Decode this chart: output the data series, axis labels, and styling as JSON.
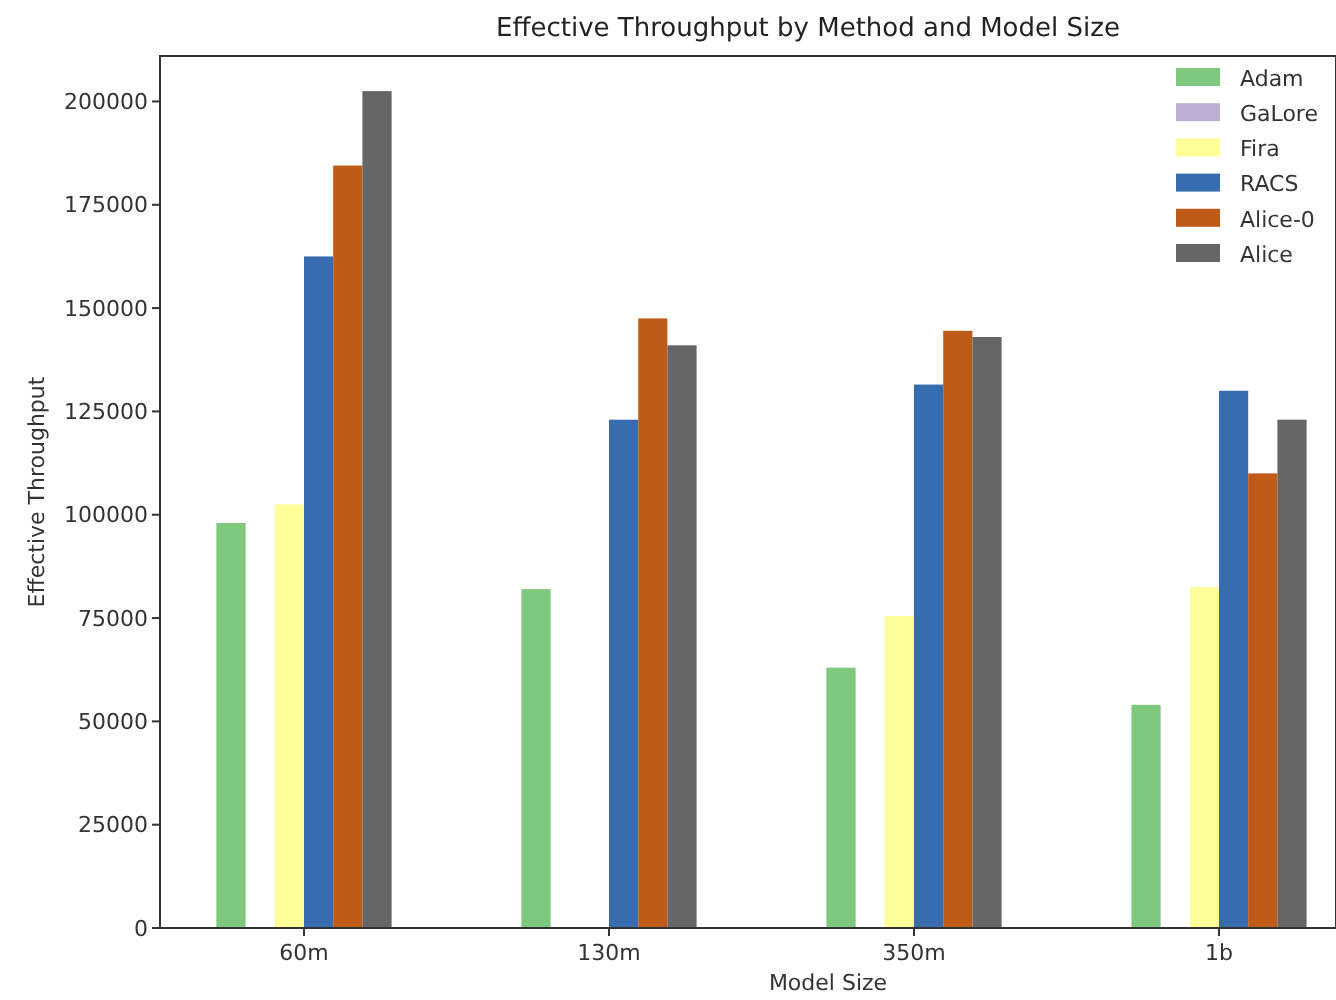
{
  "chart_data": {
    "type": "bar",
    "title": "Effective Throughput by Method and Model Size",
    "xlabel": "Model Size",
    "ylabel": "Effective Throughput",
    "categories": [
      "60m",
      "130m",
      "350m",
      "1b"
    ],
    "series": [
      {
        "name": "Adam",
        "color": "#7fc97f",
        "values": [
          98000,
          82000,
          63000,
          54000
        ]
      },
      {
        "name": "GaLore",
        "color": "#beaed4",
        "values": [
          null,
          null,
          null,
          null
        ]
      },
      {
        "name": "Fira",
        "color": "#ffff99",
        "values": [
          102500,
          null,
          75500,
          82500
        ]
      },
      {
        "name": "RACS",
        "color": "#386cb0",
        "values": [
          162500,
          123000,
          131500,
          130000
        ]
      },
      {
        "name": "Alice-0",
        "color": "#bf5b17",
        "values": [
          184500,
          147500,
          144500,
          110000
        ]
      },
      {
        "name": "Alice",
        "color": "#666666",
        "values": [
          202500,
          141000,
          143000,
          123000
        ]
      }
    ],
    "ylim": [
      0,
      211000
    ],
    "yticks": [
      0,
      25000,
      50000,
      75000,
      100000,
      125000,
      150000,
      175000,
      200000
    ],
    "grid": false,
    "legend": "top right"
  }
}
